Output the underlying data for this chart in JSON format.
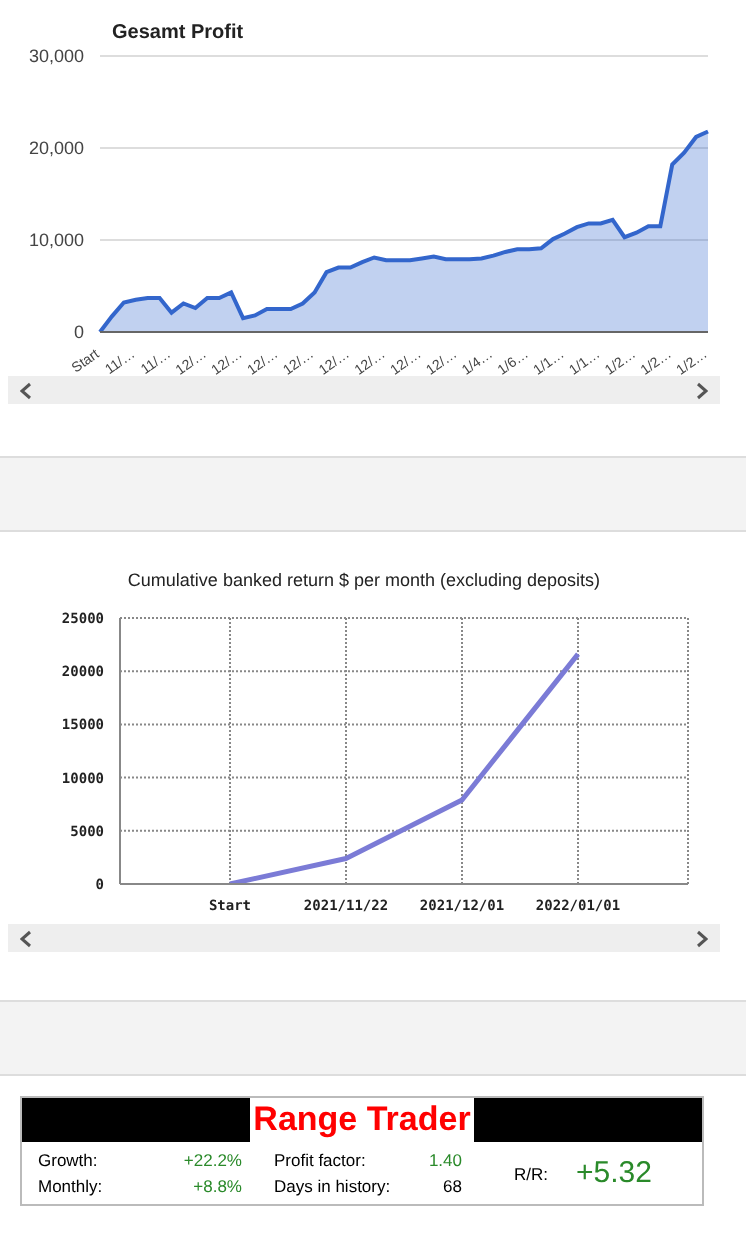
{
  "chart_data": [
    {
      "type": "area",
      "title": "Gesamt Profit",
      "color": "#3366cc",
      "categories": [
        "Start",
        null,
        null,
        "11/…",
        null,
        null,
        "11/…",
        null,
        null,
        "12/…",
        null,
        null,
        "12/…",
        null,
        null,
        "12/…",
        null,
        null,
        "12/…",
        null,
        null,
        "12/…",
        null,
        null,
        "12/…",
        null,
        null,
        "12/…",
        null,
        null,
        "12/…",
        null,
        null,
        "1/4…",
        null,
        null,
        "1/6…",
        null,
        null,
        "1/1…",
        null,
        null,
        "1/1…",
        null,
        null,
        "1/2…",
        null,
        null,
        "1/2…",
        null,
        null,
        "1/2…"
      ],
      "values": [
        0,
        1700,
        3200,
        3500,
        3700,
        3700,
        2100,
        3100,
        2600,
        3700,
        3700,
        4300,
        1500,
        1800,
        2500,
        2500,
        2500,
        3100,
        4300,
        6500,
        7000,
        7000,
        7600,
        8100,
        7800,
        7800,
        7800,
        8000,
        8200,
        7900,
        7900,
        7900,
        8000,
        8300,
        8700,
        9000,
        9000,
        9100,
        10100,
        10700,
        11400,
        11800,
        11800,
        12200,
        10300,
        10800,
        11500,
        11500,
        18200,
        19500,
        21200,
        21800
      ],
      "ylim": [
        0,
        30000
      ],
      "yticks": [
        0,
        {
          "value": 10000,
          "label": "10,000"
        },
        {
          "value": 20000,
          "label": "20,000"
        },
        {
          "value": 30000,
          "label": "30,000"
        }
      ],
      "grid": "y"
    },
    {
      "type": "line",
      "title": "Cumulative banked return $ per month (excluding deposits)",
      "color": "#7b7bd6",
      "categories": [
        "Start",
        "2021/11/22",
        "2021/12/01",
        "2022/01/01"
      ],
      "values": [
        0,
        2400,
        7900,
        21600
      ],
      "ylim": [
        0,
        25000
      ],
      "yticks": [
        0,
        5000,
        10000,
        15000,
        20000,
        25000
      ],
      "grid": true
    },
    {
      "type": "other",
      "title": "Range Trader",
      "annotations": [
        "Growth:",
        "+22.2%",
        "Profit factor:",
        "1.40",
        "Monthly:",
        "+8.8%",
        "Days in history:",
        "68",
        "R/R:",
        "+5.32"
      ]
    }
  ]
}
